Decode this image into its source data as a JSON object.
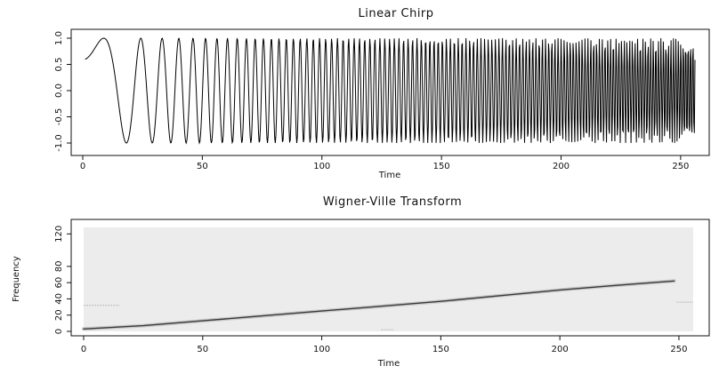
{
  "chart_data": [
    {
      "type": "line",
      "title": "Linear Chirp",
      "xlabel": "Time",
      "ylabel": "",
      "xlim": [
        0,
        256
      ],
      "ylim": [
        -1.0,
        1.0
      ],
      "x_ticks": [
        0,
        50,
        100,
        150,
        200,
        250
      ],
      "x_tick_labels": [
        "0",
        "50",
        "100",
        "150",
        "200",
        "250"
      ],
      "y_ticks": [
        -1.0,
        -0.5,
        0.0,
        0.5,
        1.0
      ],
      "y_tick_labels": [
        "-1.0",
        "-0.5",
        "0.0",
        "0.5",
        "1.0"
      ],
      "grid": false,
      "series": [
        {
          "signal": "sin(pi/5 + 2*pi*t^2/512), t = 1..256, sampled at integer t",
          "n_points": 256,
          "x_start": 1,
          "x_end": 256,
          "phase_offset": 0.628,
          "chirp_rate_divisor": 512,
          "color": "#000000"
        }
      ]
    },
    {
      "type": "heatmap",
      "title": "Wigner-Ville Transform",
      "xlabel": "Time",
      "ylabel": "Frequency",
      "xlim": [
        0,
        256
      ],
      "ylim": [
        0,
        128
      ],
      "x_ticks": [
        0,
        50,
        100,
        150,
        200,
        250
      ],
      "x_tick_labels": [
        "0",
        "50",
        "100",
        "150",
        "200",
        "250"
      ],
      "y_ticks": [
        0,
        20,
        40,
        60,
        80,
        120
      ],
      "y_tick_labels": [
        "0",
        "20",
        "40",
        "60",
        "80",
        "120"
      ],
      "grid": false,
      "background_color": "#ececec",
      "ridge": {
        "points": [
          [
            0,
            3
          ],
          [
            25,
            7
          ],
          [
            50,
            13
          ],
          [
            75,
            19
          ],
          [
            100,
            25
          ],
          [
            125,
            31
          ],
          [
            150,
            37
          ],
          [
            175,
            44
          ],
          [
            200,
            51
          ],
          [
            225,
            57
          ],
          [
            248,
            62
          ]
        ],
        "color": "#3a3a3a"
      },
      "artifacts": [
        {
          "x": [
            0,
            15
          ],
          "y": 32
        },
        {
          "x": [
            249,
            256
          ],
          "y": 36
        },
        {
          "x": [
            125,
            130
          ],
          "y": 2
        }
      ]
    }
  ]
}
